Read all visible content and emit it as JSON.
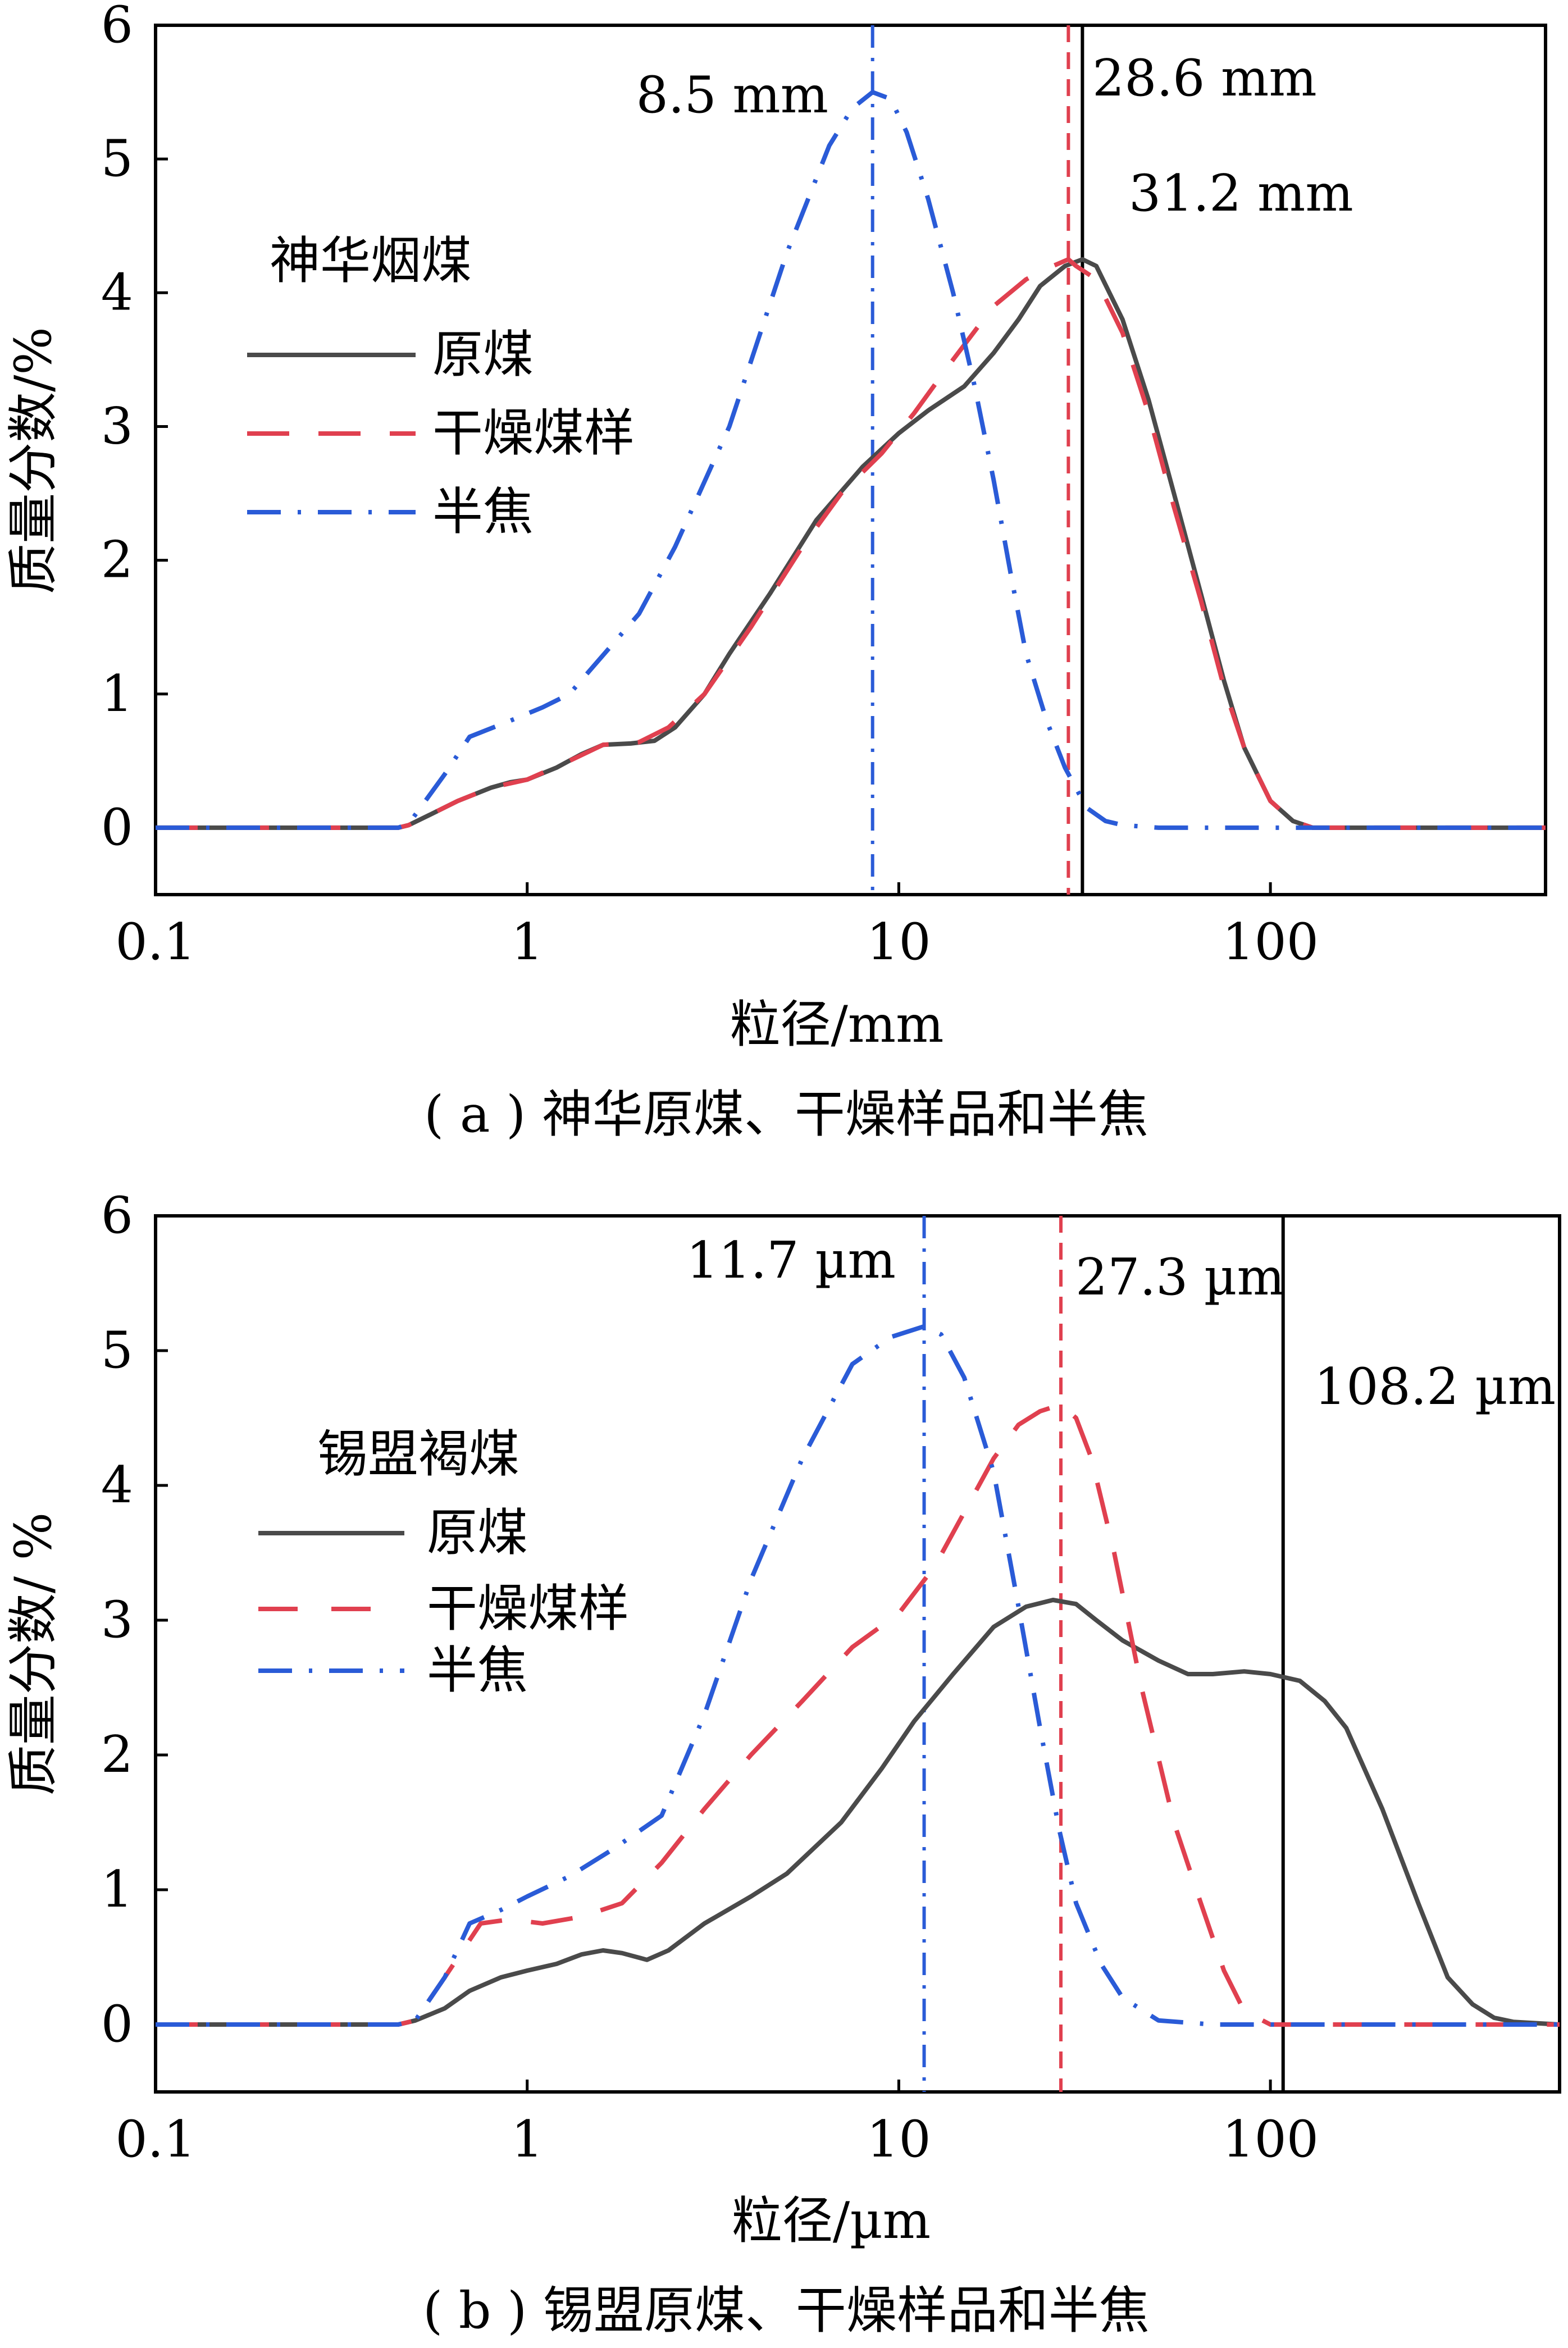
{
  "chart_data": [
    {
      "type": "line",
      "panel": "a",
      "caption": "( a ) 神华原煤、干燥样品和半焦",
      "xlabel": "粒径/mm",
      "ylabel": "质量分数/%",
      "xscale": "log",
      "xlim": [
        0.1,
        550
      ],
      "ylim": [
        -0.5,
        6
      ],
      "xticks": [
        0.1,
        1,
        10,
        100
      ],
      "xtick_labels": [
        "0.1",
        "1",
        "10",
        "100"
      ],
      "yticks": [
        0,
        1,
        2,
        3,
        4,
        5,
        6
      ],
      "ytick_labels": [
        "0",
        "1",
        "2",
        "3",
        "4",
        "5",
        "6"
      ],
      "legend_title": "神华烟煤",
      "legend_position": "left",
      "series": [
        {
          "name": "原煤",
          "color": "#4a4a4a",
          "dash": "solid",
          "x": [
            0.1,
            0.45,
            0.48,
            0.55,
            0.65,
            0.8,
            0.9,
            1.0,
            1.2,
            1.4,
            1.6,
            1.9,
            2.2,
            2.5,
            3.0,
            3.5,
            4.5,
            6.0,
            8.0,
            10.0,
            12.0,
            15.0,
            18.0,
            21.0,
            24.0,
            28.0,
            31.2,
            34.0,
            40.0,
            47.0,
            55.0,
            65.0,
            75.0,
            85.0,
            100.0,
            115.0,
            130.0,
            160.0,
            550.0
          ],
          "y": [
            0,
            0,
            0.02,
            0.1,
            0.2,
            0.3,
            0.34,
            0.36,
            0.45,
            0.55,
            0.62,
            0.63,
            0.65,
            0.75,
            1.0,
            1.3,
            1.75,
            2.3,
            2.7,
            2.95,
            3.12,
            3.3,
            3.55,
            3.8,
            4.05,
            4.2,
            4.25,
            4.2,
            3.8,
            3.2,
            2.5,
            1.75,
            1.1,
            0.6,
            0.2,
            0.05,
            0,
            0,
            0
          ]
        },
        {
          "name": "干燥煤样",
          "color": "#e0404f",
          "dash": "dashed",
          "x": [
            0.1,
            0.45,
            0.48,
            0.55,
            0.65,
            0.8,
            1.0,
            1.3,
            1.6,
            2.0,
            2.4,
            3.0,
            4.0,
            5.5,
            7.0,
            9.0,
            11.0,
            14.0,
            18.0,
            22.0,
            25.0,
            28.6,
            30.0,
            34.0,
            40.0,
            47.0,
            55.0,
            65.0,
            75.0,
            85.0,
            100.0,
            115.0,
            130.0,
            160.0,
            550.0
          ],
          "y": [
            0,
            0,
            0.02,
            0.1,
            0.2,
            0.3,
            0.36,
            0.5,
            0.62,
            0.64,
            0.75,
            1.0,
            1.5,
            2.1,
            2.5,
            2.8,
            3.1,
            3.5,
            3.9,
            4.1,
            4.18,
            4.25,
            4.2,
            4.1,
            3.7,
            3.1,
            2.4,
            1.7,
            1.05,
            0.6,
            0.2,
            0.05,
            0,
            0,
            0
          ]
        },
        {
          "name": "半焦",
          "color": "#2a5bd7",
          "dash": "dashdot",
          "x": [
            0.1,
            0.45,
            0.48,
            0.6,
            0.7,
            0.9,
            1.1,
            1.3,
            1.5,
            2.0,
            2.5,
            3.5,
            5.0,
            6.5,
            7.5,
            8.5,
            9.5,
            10.5,
            12.0,
            14.0,
            16.0,
            18.0,
            20.0,
            22.0,
            25.0,
            28.0,
            32.0,
            36.0,
            40.0,
            50.0,
            70.0,
            100.0,
            150.0,
            550.0
          ],
          "y": [
            0,
            0,
            0.03,
            0.4,
            0.68,
            0.8,
            0.9,
            1.0,
            1.2,
            1.6,
            2.1,
            3.0,
            4.3,
            5.1,
            5.38,
            5.5,
            5.45,
            5.2,
            4.7,
            4.0,
            3.3,
            2.6,
            1.9,
            1.3,
            0.8,
            0.45,
            0.15,
            0.05,
            0.02,
            0,
            0,
            0,
            0,
            0
          ]
        }
      ],
      "vlines": [
        {
          "x": 8.5,
          "color": "#2a5bd7",
          "dash": "dashdot",
          "label": "8.5 mm"
        },
        {
          "x": 28.6,
          "color": "#e0404f",
          "dash": "dashed",
          "label": "28.6 mm"
        },
        {
          "x": 31.2,
          "color": "#000000",
          "dash": "solid",
          "label": "31.2 mm"
        }
      ]
    },
    {
      "type": "line",
      "panel": "b",
      "caption": "( b ) 锡盟原煤、干燥样品和半焦",
      "xlabel": "粒径/µm",
      "ylabel": "质量分数/ %",
      "xscale": "log",
      "xlim": [
        0.1,
        600
      ],
      "ylim": [
        -0.5,
        6
      ],
      "xticks": [
        0.1,
        1,
        10,
        100
      ],
      "xtick_labels": [
        "0.1",
        "1",
        "10",
        "100"
      ],
      "yticks": [
        0,
        1,
        2,
        3,
        4,
        5,
        6
      ],
      "ytick_labels": [
        "0",
        "1",
        "2",
        "3",
        "4",
        "5",
        "6"
      ],
      "legend_title": "锡盟褐煤",
      "legend_position": "left",
      "series": [
        {
          "name": "原煤",
          "color": "#4a4a4a",
          "dash": "solid",
          "x": [
            0.1,
            0.45,
            0.5,
            0.6,
            0.7,
            0.85,
            1.0,
            1.2,
            1.4,
            1.6,
            1.8,
            2.1,
            2.4,
            3.0,
            4.0,
            5.0,
            7.0,
            9.0,
            11.0,
            14.0,
            18.0,
            22.0,
            26.0,
            30.0,
            34.0,
            40.0,
            50.0,
            60.0,
            70.0,
            85.0,
            100.0,
            120.0,
            140.0,
            160.0,
            200.0,
            250.0,
            300.0,
            350.0,
            400.0,
            450.0,
            600.0
          ],
          "y": [
            0,
            0,
            0.03,
            0.12,
            0.25,
            0.35,
            0.4,
            0.45,
            0.52,
            0.55,
            0.53,
            0.48,
            0.55,
            0.75,
            0.95,
            1.12,
            1.5,
            1.9,
            2.25,
            2.6,
            2.95,
            3.1,
            3.15,
            3.12,
            3.0,
            2.85,
            2.7,
            2.6,
            2.6,
            2.62,
            2.6,
            2.55,
            2.4,
            2.2,
            1.6,
            0.9,
            0.35,
            0.15,
            0.05,
            0.02,
            0
          ]
        },
        {
          "name": "干燥煤样",
          "color": "#e0404f",
          "dash": "dashed",
          "x": [
            0.1,
            0.45,
            0.5,
            0.6,
            0.75,
            0.9,
            1.1,
            1.4,
            1.8,
            2.3,
            3.0,
            4.0,
            5.5,
            7.5,
            10.0,
            12.5,
            15.0,
            18.0,
            21.0,
            24.0,
            27.3,
            30.0,
            33.0,
            38.0,
            45.0,
            55.0,
            65.0,
            75.0,
            85.0,
            100.0,
            130.0,
            200.0,
            600.0
          ],
          "y": [
            0,
            0,
            0.03,
            0.35,
            0.75,
            0.78,
            0.75,
            0.8,
            0.9,
            1.2,
            1.6,
            2.0,
            2.4,
            2.8,
            3.05,
            3.4,
            3.8,
            4.2,
            4.45,
            4.55,
            4.6,
            4.5,
            4.2,
            3.5,
            2.5,
            1.5,
            0.9,
            0.4,
            0.1,
            0,
            0,
            0,
            0
          ]
        },
        {
          "name": "半焦",
          "color": "#2a5bd7",
          "dash": "dashdot",
          "x": [
            0.1,
            0.45,
            0.5,
            0.6,
            0.7,
            0.85,
            1.0,
            1.3,
            1.7,
            2.3,
            3.0,
            4.0,
            5.5,
            7.5,
            9.5,
            11.7,
            13.0,
            15.0,
            18.0,
            21.0,
            24.0,
            27.0,
            30.0,
            35.0,
            40.0,
            50.0,
            70.0,
            100.0,
            200.0,
            600.0
          ],
          "y": [
            0,
            0,
            0.03,
            0.35,
            0.75,
            0.85,
            0.95,
            1.1,
            1.3,
            1.55,
            2.3,
            3.3,
            4.2,
            4.9,
            5.1,
            5.18,
            5.12,
            4.8,
            4.1,
            3.1,
            2.2,
            1.45,
            0.9,
            0.45,
            0.2,
            0.03,
            0,
            0,
            0,
            0
          ]
        }
      ],
      "vlines": [
        {
          "x": 11.7,
          "color": "#2a5bd7",
          "dash": "dashdot",
          "label": "11.7 µm"
        },
        {
          "x": 27.3,
          "color": "#e0404f",
          "dash": "dashed",
          "label": "27.3 µm"
        },
        {
          "x": 108.2,
          "color": "#000000",
          "dash": "solid",
          "label": "108.2 µm"
        }
      ]
    }
  ]
}
